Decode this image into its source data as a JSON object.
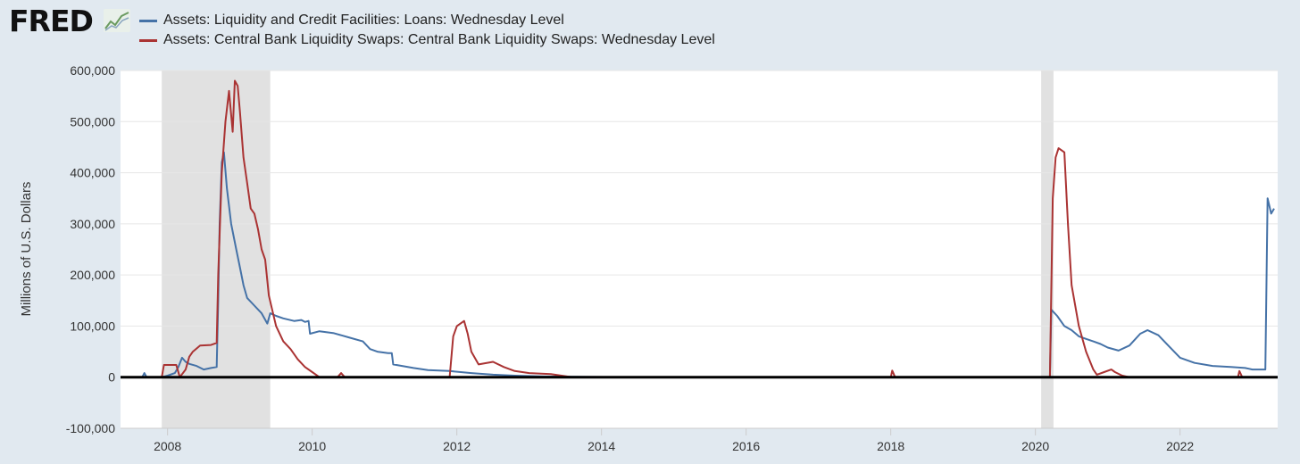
{
  "logo": {
    "text": "FRED"
  },
  "chart_data": {
    "type": "line",
    "title": "",
    "xlabel": "",
    "ylabel": "Millions of U.S. Dollars",
    "xlim": [
      2007.35,
      2023.35
    ],
    "ylim": [
      -100000,
      600000
    ],
    "x_ticks": [
      2008,
      2010,
      2012,
      2014,
      2016,
      2018,
      2020,
      2022
    ],
    "y_ticks": [
      -100000,
      0,
      100000,
      200000,
      300000,
      400000,
      500000,
      600000
    ],
    "y_tick_labels": [
      "-100,000",
      "0",
      "100,000",
      "200,000",
      "300,000",
      "400,000",
      "500,000",
      "600,000"
    ],
    "legend_position": "top-left",
    "grid": true,
    "zero_line": true,
    "recessions": [
      [
        2007.92,
        2009.42
      ],
      [
        2020.08,
        2020.25
      ]
    ],
    "series": [
      {
        "name": "Assets: Liquidity and Credit Facilities: Loans: Wednesday Level",
        "color": "#4572a7",
        "points": [
          [
            2007.35,
            0
          ],
          [
            2007.65,
            0
          ],
          [
            2007.68,
            8000
          ],
          [
            2007.71,
            0
          ],
          [
            2007.92,
            0
          ],
          [
            2008.0,
            3000
          ],
          [
            2008.1,
            8000
          ],
          [
            2008.15,
            20000
          ],
          [
            2008.2,
            38000
          ],
          [
            2008.25,
            30000
          ],
          [
            2008.3,
            26000
          ],
          [
            2008.4,
            22000
          ],
          [
            2008.5,
            15000
          ],
          [
            2008.6,
            18000
          ],
          [
            2008.68,
            20000
          ],
          [
            2008.7,
            150000
          ],
          [
            2008.72,
            300000
          ],
          [
            2008.75,
            420000
          ],
          [
            2008.78,
            440000
          ],
          [
            2008.82,
            370000
          ],
          [
            2008.88,
            300000
          ],
          [
            2008.95,
            250000
          ],
          [
            2009.0,
            215000
          ],
          [
            2009.05,
            180000
          ],
          [
            2009.1,
            155000
          ],
          [
            2009.2,
            140000
          ],
          [
            2009.3,
            125000
          ],
          [
            2009.38,
            105000
          ],
          [
            2009.42,
            125000
          ],
          [
            2009.5,
            120000
          ],
          [
            2009.6,
            115000
          ],
          [
            2009.75,
            110000
          ],
          [
            2009.85,
            112000
          ],
          [
            2009.9,
            108000
          ],
          [
            2009.95,
            110000
          ],
          [
            2009.97,
            85000
          ],
          [
            2010.1,
            90000
          ],
          [
            2010.3,
            86000
          ],
          [
            2010.5,
            78000
          ],
          [
            2010.7,
            70000
          ],
          [
            2010.8,
            55000
          ],
          [
            2010.9,
            50000
          ],
          [
            2011.05,
            47000
          ],
          [
            2011.1,
            47000
          ],
          [
            2011.12,
            25000
          ],
          [
            2011.4,
            18000
          ],
          [
            2011.6,
            14000
          ],
          [
            2011.9,
            12000
          ],
          [
            2012.2,
            8000
          ],
          [
            2012.5,
            5000
          ],
          [
            2012.8,
            3000
          ],
          [
            2013.2,
            1500
          ],
          [
            2013.8,
            500
          ],
          [
            2014.5,
            0
          ],
          [
            2020.2,
            0
          ],
          [
            2020.22,
            132000
          ],
          [
            2020.3,
            120000
          ],
          [
            2020.4,
            100000
          ],
          [
            2020.5,
            92000
          ],
          [
            2020.6,
            80000
          ],
          [
            2020.7,
            75000
          ],
          [
            2020.8,
            70000
          ],
          [
            2020.9,
            65000
          ],
          [
            2021.0,
            58000
          ],
          [
            2021.15,
            52000
          ],
          [
            2021.3,
            62000
          ],
          [
            2021.45,
            85000
          ],
          [
            2021.55,
            92000
          ],
          [
            2021.7,
            82000
          ],
          [
            2021.85,
            60000
          ],
          [
            2022.0,
            38000
          ],
          [
            2022.2,
            28000
          ],
          [
            2022.45,
            22000
          ],
          [
            2022.7,
            20000
          ],
          [
            2022.9,
            18000
          ],
          [
            2023.0,
            15000
          ],
          [
            2023.18,
            15000
          ],
          [
            2023.21,
            350000
          ],
          [
            2023.26,
            320000
          ],
          [
            2023.3,
            330000
          ]
        ]
      },
      {
        "name": "Assets: Central Bank Liquidity Swaps: Central Bank Liquidity Swaps: Wednesday Level",
        "color": "#aa3333",
        "points": [
          [
            2007.35,
            0
          ],
          [
            2007.92,
            0
          ],
          [
            2007.95,
            24000
          ],
          [
            2008.12,
            24000
          ],
          [
            2008.17,
            0
          ],
          [
            2008.25,
            15000
          ],
          [
            2008.3,
            40000
          ],
          [
            2008.35,
            50000
          ],
          [
            2008.45,
            62000
          ],
          [
            2008.6,
            63000
          ],
          [
            2008.68,
            67000
          ],
          [
            2008.7,
            200000
          ],
          [
            2008.75,
            400000
          ],
          [
            2008.8,
            500000
          ],
          [
            2008.85,
            560000
          ],
          [
            2008.9,
            480000
          ],
          [
            2008.93,
            580000
          ],
          [
            2008.97,
            570000
          ],
          [
            2009.0,
            520000
          ],
          [
            2009.05,
            430000
          ],
          [
            2009.1,
            380000
          ],
          [
            2009.15,
            330000
          ],
          [
            2009.2,
            320000
          ],
          [
            2009.25,
            290000
          ],
          [
            2009.3,
            250000
          ],
          [
            2009.35,
            230000
          ],
          [
            2009.4,
            160000
          ],
          [
            2009.45,
            130000
          ],
          [
            2009.5,
            100000
          ],
          [
            2009.6,
            70000
          ],
          [
            2009.7,
            55000
          ],
          [
            2009.8,
            35000
          ],
          [
            2009.9,
            20000
          ],
          [
            2010.0,
            10000
          ],
          [
            2010.1,
            0
          ],
          [
            2010.35,
            0
          ],
          [
            2010.4,
            8000
          ],
          [
            2010.45,
            0
          ],
          [
            2011.9,
            0
          ],
          [
            2011.95,
            80000
          ],
          [
            2012.0,
            100000
          ],
          [
            2012.1,
            110000
          ],
          [
            2012.15,
            85000
          ],
          [
            2012.2,
            50000
          ],
          [
            2012.3,
            25000
          ],
          [
            2012.5,
            30000
          ],
          [
            2012.65,
            20000
          ],
          [
            2012.8,
            12000
          ],
          [
            2013.0,
            8000
          ],
          [
            2013.3,
            6000
          ],
          [
            2013.5,
            2000
          ],
          [
            2013.6,
            0
          ],
          [
            2018.0,
            0
          ],
          [
            2018.02,
            13000
          ],
          [
            2018.06,
            0
          ],
          [
            2020.2,
            0
          ],
          [
            2020.24,
            350000
          ],
          [
            2020.28,
            430000
          ],
          [
            2020.32,
            448000
          ],
          [
            2020.4,
            440000
          ],
          [
            2020.45,
            300000
          ],
          [
            2020.5,
            180000
          ],
          [
            2020.6,
            100000
          ],
          [
            2020.7,
            50000
          ],
          [
            2020.8,
            15000
          ],
          [
            2020.85,
            5000
          ],
          [
            2020.95,
            10000
          ],
          [
            2021.05,
            15000
          ],
          [
            2021.1,
            10000
          ],
          [
            2021.2,
            3000
          ],
          [
            2021.3,
            0
          ],
          [
            2022.8,
            0
          ],
          [
            2022.82,
            12000
          ],
          [
            2022.86,
            0
          ],
          [
            2023.3,
            0
          ]
        ]
      }
    ]
  }
}
